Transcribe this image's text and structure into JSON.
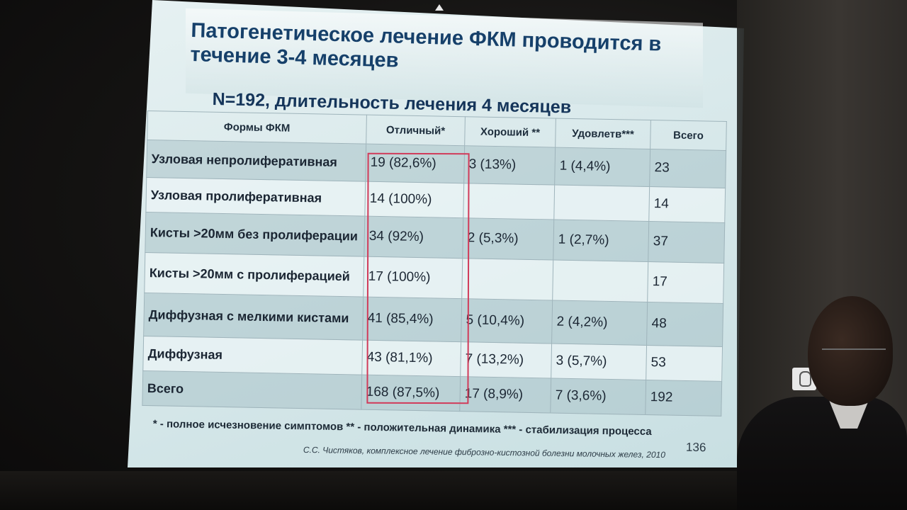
{
  "slide": {
    "title": "Патогенетическое лечение ФКМ проводится в течение 3-4 месяцев",
    "subtitle": "N=192, длительность лечения 4 месяцев",
    "table": {
      "headers": [
        "Формы ФКМ",
        "Отличный*",
        "Хороший **",
        "Удовлетв***",
        "Всего"
      ],
      "rows": [
        {
          "form": "Узловая непролиферативная",
          "excellent": "19 (82,6%)",
          "good": "3 (13%)",
          "satisfactory": "1 (4,4%)",
          "total": "23"
        },
        {
          "form": "Узловая пролиферативная",
          "excellent": "14 (100%)",
          "good": "",
          "satisfactory": "",
          "total": "14"
        },
        {
          "form": "Кисты >20мм без пролиферации",
          "excellent": "34 (92%)",
          "good": "2 (5,3%)",
          "satisfactory": "1 (2,7%)",
          "total": "37"
        },
        {
          "form": "Кисты >20мм с пролиферацией",
          "excellent": "17 (100%)",
          "good": "",
          "satisfactory": "",
          "total": "17"
        },
        {
          "form": "Диффузная с мелкими кистами",
          "excellent": "41 (85,4%)",
          "good": "5 (10,4%)",
          "satisfactory": "2 (4,2%)",
          "total": "48"
        },
        {
          "form": "Диффузная",
          "excellent": "43 (81,1%)",
          "good": "7 (13,2%)",
          "satisfactory": "3 (5,7%)",
          "total": "53"
        },
        {
          "form": "Всего",
          "excellent": "168 (87,5%)",
          "good": "17 (8,9%)",
          "satisfactory": "7 (3,6%)",
          "total": "192"
        }
      ]
    },
    "footnote": "* - полное исчезновение симптомов ** - положительная динамика *** - стабилизация процесса",
    "citation": "С.С. Чистяков, комплексное лечение фиброзно-кистозной болезни молочных желез, 2010",
    "slide_number": "136",
    "highlight_color": "#d13b5a"
  },
  "icons": {
    "mouse": "mouse-icon"
  }
}
